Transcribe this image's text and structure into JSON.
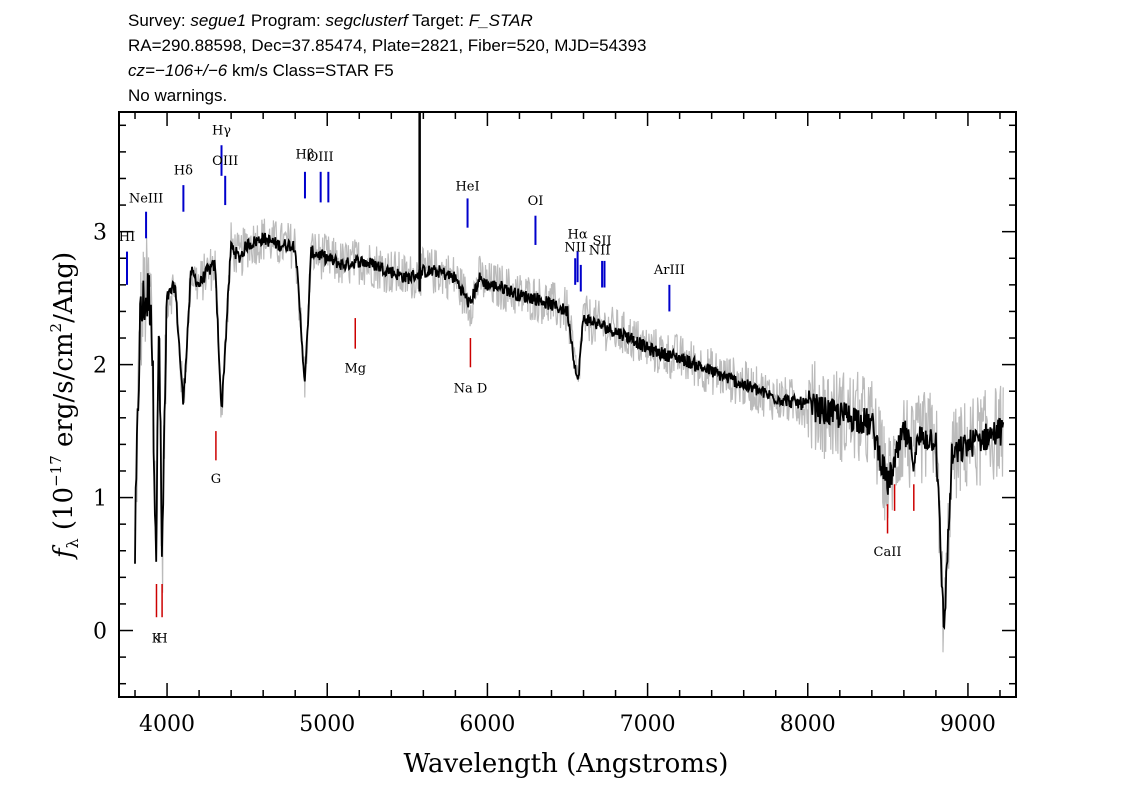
{
  "header": {
    "line1": {
      "survey_prefix": "Survey: ",
      "survey": "segue1",
      "program_prefix": " Program: ",
      "program": "segclusterf",
      "target_prefix": " Target: ",
      "target": "F_STAR"
    },
    "line2": "RA=290.88598, Dec=37.85474, Plate=2821, Fiber=520, MJD=54393",
    "line3": {
      "cz": "cz=−106+/−6",
      "rest": " km/s Class=STAR F5"
    },
    "line4": "No warnings."
  },
  "chart_data": {
    "type": "line",
    "title": "",
    "xlabel": "Wavelength (Angstroms)",
    "ylabel": "f_λ (10^-17 erg/s/cm^2/Ang)",
    "xlim": [
      3700,
      9300
    ],
    "ylim": [
      -0.5,
      3.9
    ],
    "xticks": [
      4000,
      5000,
      6000,
      7000,
      8000,
      9000
    ],
    "yticks": [
      0,
      1,
      2,
      3
    ],
    "grid": false,
    "series": [
      {
        "role": "flux",
        "color": "#000000",
        "x": [
          3800,
          3830,
          3860,
          3900,
          3933,
          3950,
          3968,
          4000,
          4050,
          4101,
          4150,
          4200,
          4250,
          4300,
          4340,
          4400,
          4450,
          4500,
          4600,
          4700,
          4800,
          4861,
          4900,
          5000,
          5100,
          5200,
          5300,
          5400,
          5500,
          5600,
          5700,
          5800,
          5890,
          5950,
          6000,
          6100,
          6200,
          6300,
          6400,
          6500,
          6563,
          6600,
          6700,
          6800,
          6900,
          7000,
          7100,
          7200,
          7300,
          7400,
          7500,
          7600,
          7700,
          7800,
          7900,
          8000,
          8100,
          8200,
          8300,
          8400,
          8498,
          8542,
          8600,
          8662,
          8700,
          8800,
          8850,
          8900,
          9000,
          9100,
          9200
        ],
        "y": [
          0.6,
          2.3,
          2.5,
          2.5,
          0.6,
          2.4,
          0.5,
          2.5,
          2.6,
          1.7,
          2.7,
          2.6,
          2.7,
          2.75,
          1.65,
          2.9,
          2.8,
          2.9,
          2.95,
          2.9,
          2.9,
          1.85,
          2.85,
          2.8,
          2.75,
          2.78,
          2.75,
          2.7,
          2.65,
          2.7,
          2.7,
          2.65,
          2.45,
          2.65,
          2.6,
          2.58,
          2.52,
          2.5,
          2.45,
          2.4,
          1.85,
          2.35,
          2.3,
          2.25,
          2.2,
          2.12,
          2.08,
          2.05,
          2.0,
          1.95,
          1.9,
          1.85,
          1.8,
          1.75,
          1.72,
          1.7,
          1.65,
          1.62,
          1.6,
          1.55,
          1.1,
          1.25,
          1.5,
          1.3,
          1.45,
          1.45,
          0.0,
          1.3,
          1.4,
          1.45,
          1.5
        ]
      },
      {
        "role": "uncertainty-envelope",
        "color": "#bbbbbb"
      }
    ],
    "emission_lines": [
      {
        "label": "HI",
        "x": 3750,
        "ytop": 2.85,
        "ybot": 2.6,
        "label_y": 2.93
      },
      {
        "label": "NeIII",
        "x": 3869,
        "ytop": 3.15,
        "ybot": 2.95,
        "label_y": 3.22
      },
      {
        "label": "Hδ",
        "x": 4102,
        "ytop": 3.35,
        "ybot": 3.15,
        "label_y": 3.43
      },
      {
        "label": "Hγ",
        "x": 4340,
        "ytop": 3.65,
        "ybot": 3.42,
        "label_y": 3.73
      },
      {
        "label": "OIII",
        "x": 4363,
        "ytop": 3.42,
        "ybot": 3.2,
        "label_y": 3.5
      },
      {
        "label": "Hβ",
        "x": 4861,
        "ytop": 3.45,
        "ybot": 3.25,
        "label_y": 3.55
      },
      {
        "label": "OIII",
        "x": 4959,
        "ytop": 3.45,
        "ybot": 3.22,
        "label_y": 3.53
      },
      {
        "label": "",
        "x": 5007,
        "ytop": 3.45,
        "ybot": 3.22,
        "label_y": null
      },
      {
        "label": "HeI",
        "x": 5876,
        "ytop": 3.25,
        "ybot": 3.03,
        "label_y": 3.31
      },
      {
        "label": "OI",
        "x": 6300,
        "ytop": 3.12,
        "ybot": 2.9,
        "label_y": 3.2
      },
      {
        "label": "NII",
        "x": 6548,
        "ytop": 2.8,
        "ybot": 2.6,
        "label_y": 2.85
      },
      {
        "label": "Hα",
        "x": 6563,
        "ytop": 2.85,
        "ybot": 2.62,
        "label_y": 2.95
      },
      {
        "label": "",
        "x": 6583,
        "ytop": 2.75,
        "ybot": 2.55,
        "label_y": null
      },
      {
        "label": "SII",
        "x": 6716,
        "ytop": 2.78,
        "ybot": 2.58,
        "label_y": 2.9
      },
      {
        "label": "",
        "x": 6731,
        "ytop": 2.78,
        "ybot": 2.58,
        "label_y": null
      },
      {
        "label": "NII",
        "x": 6700,
        "ytop": null,
        "ybot": null,
        "label_y": 2.83
      },
      {
        "label": "ArIII",
        "x": 7136,
        "ytop": 2.6,
        "ybot": 2.4,
        "label_y": 2.68
      }
    ],
    "absorption_lines": [
      {
        "label": "K",
        "x": 3934,
        "ytop": 0.35,
        "ybot": 0.1,
        "label_y": 0.0
      },
      {
        "label": "H",
        "x": 3969,
        "ytop": 0.35,
        "ybot": 0.1,
        "label_y": null
      },
      {
        "label": "G",
        "x": 4305,
        "ytop": 1.5,
        "ybot": 1.28,
        "label_y": 1.2
      },
      {
        "label": "Mg",
        "x": 5175,
        "ytop": 2.35,
        "ybot": 2.12,
        "label_y": 2.03
      },
      {
        "label": "Na D",
        "x": 5894,
        "ytop": 2.2,
        "ybot": 1.98,
        "label_y": 1.88
      },
      {
        "label": "CaII",
        "x": 8498,
        "ytop": 0.95,
        "ybot": 0.73,
        "label_y": 0.65
      },
      {
        "label": "",
        "x": 8542,
        "ytop": 1.1,
        "ybot": 0.9,
        "label_y": null
      },
      {
        "label": "",
        "x": 8662,
        "ytop": 1.1,
        "ybot": 0.9,
        "label_y": null
      }
    ],
    "emission_color": "#0000cc",
    "absorption_color": "#cc0000"
  }
}
